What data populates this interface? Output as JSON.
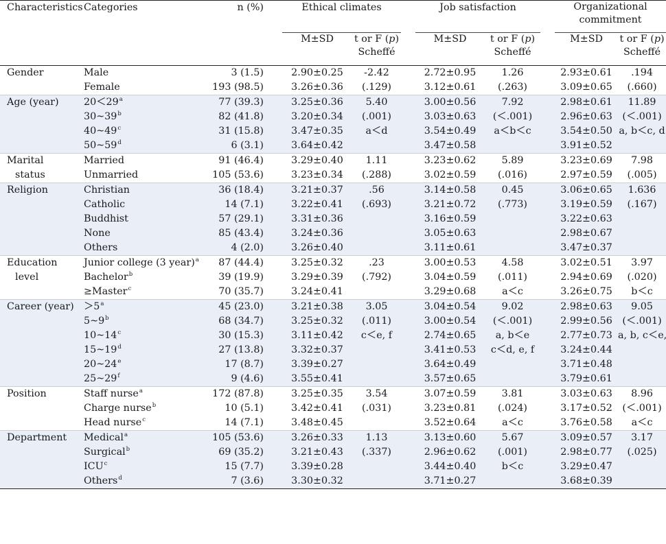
{
  "headers": {
    "characteristics": "Characteristics",
    "categories": "Categories",
    "n": "n (%)",
    "ethical": "Ethical climates",
    "job": "Job satisfaction",
    "org_line1": "Organizational",
    "org_line2": "commitment",
    "msd": "M±SD",
    "test_line1": "t or F (p)",
    "test_line2": "Scheffé"
  },
  "groups": [
    {
      "characteristic": [
        "Gender"
      ],
      "categories": [
        {
          "label": "Male",
          "sup": ""
        },
        {
          "label": "Female",
          "sup": ""
        }
      ],
      "n": [
        "3 (1.5)",
        "193 (98.5)"
      ],
      "ec": [
        "2.90±0.25",
        "3.26±0.36"
      ],
      "ec_t": [
        "-2.42",
        "(.129)"
      ],
      "js": [
        "2.72±0.95",
        "3.12±0.61"
      ],
      "js_t": [
        "1.26",
        "(.263)"
      ],
      "oc": [
        "2.93±0.61",
        "3.09±0.65"
      ],
      "oc_t": [
        ".194",
        "(.660)"
      ]
    },
    {
      "characteristic": [
        "Age (year)"
      ],
      "categories": [
        {
          "label": "20＜29",
          "sup": "a"
        },
        {
          "label": "30~39",
          "sup": "b"
        },
        {
          "label": "40~49",
          "sup": "c"
        },
        {
          "label": "50~59",
          "sup": "d"
        }
      ],
      "n": [
        "77 (39.3)",
        "82 (41.8)",
        "31 (15.8)",
        "6 (3.1)"
      ],
      "ec": [
        "3.25±0.36",
        "3.20±0.34",
        "3.47±0.35",
        "3.64±0.42"
      ],
      "ec_t": [
        "5.40",
        "(.001)",
        "a＜d"
      ],
      "js": [
        "3.00±0.56",
        "3.03±0.63",
        "3.54±0.49",
        "3.47±0.58"
      ],
      "js_t": [
        "7.92",
        "(＜.001)",
        "a＜b＜c"
      ],
      "oc": [
        "2.98±0.61",
        "2.96±0.63",
        "3.54±0.50",
        "3.91±0.52"
      ],
      "oc_t": [
        "11.89",
        "(＜.001)",
        "a, b＜c, d"
      ]
    },
    {
      "characteristic": [
        "Marital",
        "status"
      ],
      "categories": [
        {
          "label": "Married",
          "sup": ""
        },
        {
          "label": "Unmarried",
          "sup": ""
        }
      ],
      "n": [
        "91 (46.4)",
        "105 (53.6)"
      ],
      "ec": [
        "3.29±0.40",
        "3.23±0.34"
      ],
      "ec_t": [
        "1.11",
        "(.288)"
      ],
      "js": [
        "3.23±0.62",
        "3.02±0.59"
      ],
      "js_t": [
        "5.89",
        "(.016)"
      ],
      "oc": [
        "3.23±0.69",
        "2.97±0.59"
      ],
      "oc_t": [
        "7.98",
        "(.005)"
      ]
    },
    {
      "characteristic": [
        "Religion"
      ],
      "categories": [
        {
          "label": "Christian",
          "sup": ""
        },
        {
          "label": "Catholic",
          "sup": ""
        },
        {
          "label": "Buddhist",
          "sup": ""
        },
        {
          "label": "None",
          "sup": ""
        },
        {
          "label": "Others",
          "sup": ""
        }
      ],
      "n": [
        "36 (18.4)",
        "14 (7.1)",
        "57 (29.1)",
        "85 (43.4)",
        "4 (2.0)"
      ],
      "ec": [
        "3.21±0.37",
        "3.22±0.41",
        "3.31±0.36",
        "3.24±0.36",
        "3.26±0.40"
      ],
      "ec_t": [
        ".56",
        "(.693)"
      ],
      "js": [
        "3.14±0.58",
        "3.21±0.72",
        "3.16±0.59",
        "3.05±0.63",
        "3.11±0.61"
      ],
      "js_t": [
        "0.45",
        "(.773)"
      ],
      "oc": [
        "3.06±0.65",
        "3.19±0.59",
        "3.22±0.63",
        "2.98±0.67",
        "3.47±0.37"
      ],
      "oc_t": [
        "1.636",
        "(.167)"
      ]
    },
    {
      "characteristic": [
        "Education",
        "level"
      ],
      "categories": [
        {
          "label": "Junior college (3 year)",
          "sup": "a"
        },
        {
          "label": "Bachelor",
          "sup": "b"
        },
        {
          "label": "≥Master",
          "sup": "c"
        }
      ],
      "n": [
        "87 (44.4)",
        "39 (19.9)",
        "70 (35.7)"
      ],
      "ec": [
        "3.25±0.32",
        "3.29±0.39",
        "3.24±0.41"
      ],
      "ec_t": [
        ".23",
        "(.792)"
      ],
      "js": [
        "3.00±0.53",
        "3.04±0.59",
        "3.29±0.68"
      ],
      "js_t": [
        "4.58",
        "(.011)",
        "a＜c"
      ],
      "oc": [
        "3.02±0.51",
        "2.94±0.69",
        "3.26±0.75"
      ],
      "oc_t": [
        "3.97",
        "(.020)",
        "b＜c"
      ]
    },
    {
      "characteristic": [
        "Career (year)"
      ],
      "categories": [
        {
          "label": "＞5",
          "sup": "a"
        },
        {
          "label": "5~9",
          "sup": "b"
        },
        {
          "label": "10~14",
          "sup": "c"
        },
        {
          "label": "15~19",
          "sup": "d"
        },
        {
          "label": "20~24",
          "sup": "e"
        },
        {
          "label": "25~29",
          "sup": "f"
        }
      ],
      "n": [
        "45 (23.0)",
        "68 (34.7)",
        "30 (15.3)",
        "27 (13.8)",
        "17 (8.7)",
        "9 (4.6)"
      ],
      "ec": [
        "3.21±0.38",
        "3.25±0.32",
        "3.11±0.42",
        "3.32±0.37",
        "3.39±0.27",
        "3.55±0.41"
      ],
      "ec_t": [
        "3.05",
        "(.011)",
        "c＜e, f"
      ],
      "js": [
        "3.04±0.54",
        "3.00±0.54",
        "2.74±0.65",
        "3.41±0.53",
        "3.64±0.49",
        "3.57±0.65"
      ],
      "js_t": [
        "9.02",
        "(＜.001)",
        "a, b＜e",
        "c＜d, e, f"
      ],
      "oc": [
        "2.98±0.63",
        "2.99±0.56",
        "2.77±0.73",
        "3.24±0.44",
        "3.71±0.48",
        "3.79±0.61"
      ],
      "oc_t": [
        "9.05",
        "(＜.001)",
        "a, b, c＜e, f"
      ]
    },
    {
      "characteristic": [
        "Position"
      ],
      "categories": [
        {
          "label": "Staff nurse",
          "sup": "a"
        },
        {
          "label": "Charge nurse",
          "sup": "b"
        },
        {
          "label": "Head nurse",
          "sup": "c"
        }
      ],
      "n": [
        "172 (87.8)",
        "10 (5.1)",
        "14 (7.1)"
      ],
      "ec": [
        "3.25±0.35",
        "3.42±0.41",
        "3.48±0.45"
      ],
      "ec_t": [
        "3.54",
        "(.031)"
      ],
      "js": [
        "3.07±0.59",
        "3.23±0.81",
        "3.52±0.64"
      ],
      "js_t": [
        "3.81",
        "(.024)",
        "a＜c"
      ],
      "oc": [
        "3.03±0.63",
        "3.17±0.52",
        "3.76±0.58"
      ],
      "oc_t": [
        "8.96",
        "(＜.001)",
        "a＜c"
      ]
    },
    {
      "characteristic": [
        "Department"
      ],
      "categories": [
        {
          "label": "Medical",
          "sup": "a"
        },
        {
          "label": "Surgical",
          "sup": "b"
        },
        {
          "label": "ICU",
          "sup": "c"
        },
        {
          "label": "Others",
          "sup": "d"
        }
      ],
      "n": [
        "105 (53.6)",
        "69 (35.2)",
        "15 (7.7)",
        "7 (3.6)"
      ],
      "ec": [
        "3.26±0.33",
        "3.21±0.43",
        "3.39±0.28",
        "3.30±0.32"
      ],
      "ec_t": [
        "1.13",
        "(.337)"
      ],
      "js": [
        "3.13±0.60",
        "2.96±0.62",
        "3.44±0.40",
        "3.71±0.27"
      ],
      "js_t": [
        "5.67",
        "(.001)",
        "b＜c"
      ],
      "oc": [
        "3.09±0.57",
        "2.98±0.77",
        "3.29±0.47",
        "3.68±0.39"
      ],
      "oc_t": [
        "3.17",
        "(.025)"
      ]
    }
  ]
}
